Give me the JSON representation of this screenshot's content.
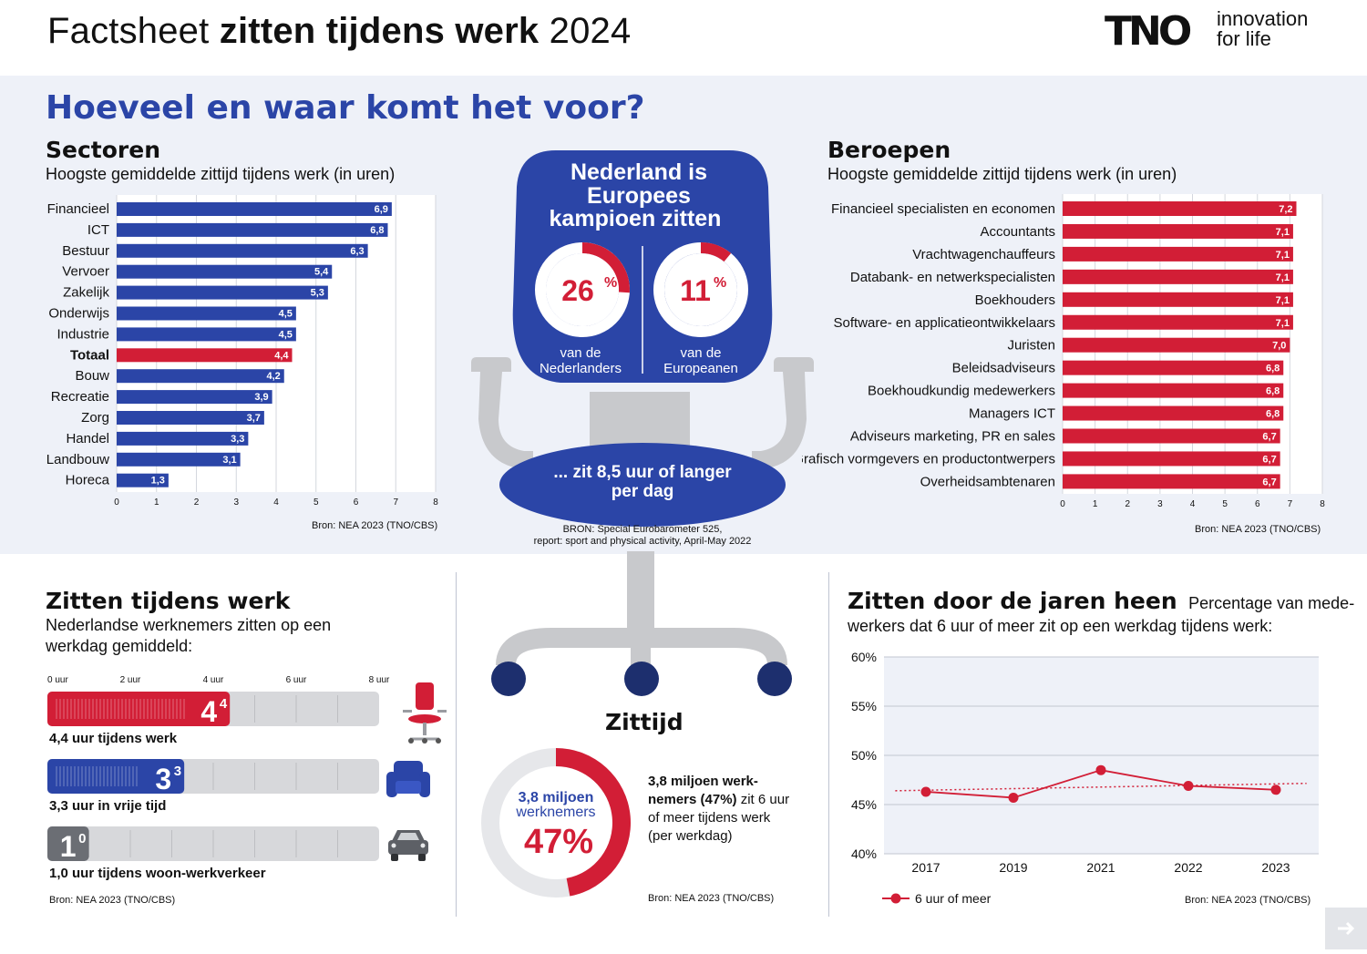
{
  "header": {
    "title_prefix": "Factsheet",
    "title_bold": "zitten tijdens werk",
    "title_suffix": "2024",
    "logo_mark": "TNO",
    "logo_line1": "innovation",
    "logo_line2": "for life"
  },
  "main_heading": "Hoeveel en waar komt het voor?",
  "sectors": {
    "title": "Sectoren",
    "subtitle": "Hoogste gemiddelde zittijd tijdens werk (in uren)",
    "source": "Bron: NEA 2023 (TNO/CBS)"
  },
  "professions": {
    "title": "Beroepen",
    "subtitle": "Hoogste gemiddelde zittijd tijdens werk (in uren)",
    "source": "Bron: NEA 2023 (TNO/CBS)"
  },
  "chair": {
    "headline_lines": [
      "Nederland is",
      "Europees",
      "kampioen zitten"
    ],
    "nl_percent": "26",
    "nl_value": 26,
    "nl_label_lines": [
      "van de",
      "Nederlanders"
    ],
    "eu_percent": "11",
    "eu_value": 11,
    "eu_label_lines": [
      "van de",
      "Europeanen"
    ],
    "seat_lines": [
      "... zit 8,5 uur of langer",
      "per dag"
    ],
    "source_lines": [
      "BRON: Special Eurobarometer 525,",
      "report: sport and physical activity, April-May 2022"
    ]
  },
  "sitting_work": {
    "title": "Zitten tijdens werk",
    "subtitle_lines": [
      "Nederlandse werknemers zitten op een",
      "werkdag gemiddeld:"
    ],
    "scale_labels": [
      "0 uur",
      "2 uur",
      "4 uur",
      "6 uur",
      "8 uur"
    ],
    "items": [
      {
        "value": 4.4,
        "big": "4",
        "small": "4",
        "label": "4,4 uur tijdens werk",
        "color": "#d21e36",
        "icon": "office-chair-icon"
      },
      {
        "value": 3.3,
        "big": "3",
        "small": "3",
        "label": "3,3 uur in vrije tijd",
        "color": "#2b45a7",
        "icon": "armchair-icon"
      },
      {
        "value": 1.0,
        "big": "1",
        "small": "0",
        "label": "1,0 uur tijdens woon-werkverkeer",
        "color": "#6b6e74",
        "icon": "car-icon"
      }
    ],
    "source": "Bron: NEA 2023 (TNO/CBS)"
  },
  "zittijd": {
    "title": "Zittijd",
    "donut_line1": "3,8 miljoen",
    "donut_line2": "werknemers",
    "donut_percent": "47%",
    "donut_value": 47,
    "desc_lines": [
      {
        "bold": "3,8 miljoen werk-",
        "normal": ""
      },
      {
        "bold": "nemers (47%)",
        "normal": " zit 6 uur"
      },
      {
        "bold": "",
        "normal": "of meer tijdens werk"
      },
      {
        "bold": "",
        "normal": "(per werkdag)"
      }
    ],
    "source": "Bron: NEA 2023 (TNO/CBS)"
  },
  "years": {
    "title": "Zitten door de jaren heen",
    "subtitle_first": "Percentage van mede-",
    "subtitle_second": "werkers dat 6 uur of meer zit op een werkdag tijdens werk:",
    "source": "Bron: NEA 2023 (TNO/CBS)"
  },
  "colors": {
    "blue": "#2b45a7",
    "red": "#d21e36",
    "navy": "#1d2f6e",
    "gray": "#c8c9cc",
    "band": "#eef1f8"
  },
  "chart_data": [
    {
      "type": "bar",
      "orientation": "horizontal",
      "title": "Sectoren",
      "subtitle": "Hoogste gemiddelde zittijd tijdens werk (in uren)",
      "categories": [
        "Financieel",
        "ICT",
        "Bestuur",
        "Vervoer",
        "Zakelijk",
        "Onderwijs",
        "Industrie",
        "Totaal",
        "Bouw",
        "Recreatie",
        "Zorg",
        "Handel",
        "Landbouw",
        "Horeca"
      ],
      "values": [
        6.9,
        6.8,
        6.3,
        5.4,
        5.3,
        4.5,
        4.5,
        4.4,
        4.2,
        3.9,
        3.7,
        3.3,
        3.1,
        1.3
      ],
      "value_labels": [
        "6,9",
        "6,8",
        "6,3",
        "5,4",
        "5,3",
        "4,5",
        "4,5",
        "4,4",
        "4,2",
        "3,9",
        "3,7",
        "3,3",
        "3,1",
        "1,3"
      ],
      "highlight": "Totaal",
      "xlim": [
        0,
        8
      ],
      "xticks": [
        0,
        1,
        2,
        3,
        4,
        5,
        6,
        7,
        8
      ],
      "grid": true
    },
    {
      "type": "bar",
      "orientation": "horizontal",
      "title": "Beroepen",
      "subtitle": "Hoogste gemiddelde zittijd tijdens werk (in uren)",
      "categories": [
        "Financieel specialisten en economen",
        "Accountants",
        "Vrachtwagenchauffeurs",
        "Databank- en netwerkspecialisten",
        "Boekhouders",
        "Software- en applicatieontwikkelaars",
        "Juristen",
        "Beleidsadviseurs",
        "Boekhoudkundig medewerkers",
        "Managers ICT",
        "Adviseurs marketing, PR en sales",
        "Grafisch vormgevers en productontwerpers",
        "Overheidsambtenaren"
      ],
      "values": [
        7.2,
        7.1,
        7.1,
        7.1,
        7.1,
        7.1,
        7.0,
        6.8,
        6.8,
        6.8,
        6.7,
        6.7,
        6.7
      ],
      "value_labels": [
        "7,2",
        "7,1",
        "7,1",
        "7,1",
        "7,1",
        "7,1",
        "7,0",
        "6,8",
        "6,8",
        "6,8",
        "6,7",
        "6,7",
        "6,7"
      ],
      "xlim": [
        0,
        8
      ],
      "xticks": [
        0,
        1,
        2,
        3,
        4,
        5,
        6,
        7,
        8
      ],
      "grid": true
    },
    {
      "type": "line",
      "title": "Zitten door de jaren heen",
      "x": [
        "2017",
        "2019",
        "2021",
        "2022",
        "2023"
      ],
      "series": [
        {
          "name": "6 uur of meer",
          "values": [
            46.3,
            45.7,
            48.5,
            46.9,
            46.5
          ]
        }
      ],
      "trendline": true,
      "ylim": [
        40,
        60
      ],
      "yticks": [
        "40%",
        "45%",
        "50%",
        "55%",
        "60%"
      ],
      "ytick_values": [
        40,
        45,
        50,
        55,
        60
      ],
      "grid": true,
      "legend": "bottom-left"
    }
  ]
}
